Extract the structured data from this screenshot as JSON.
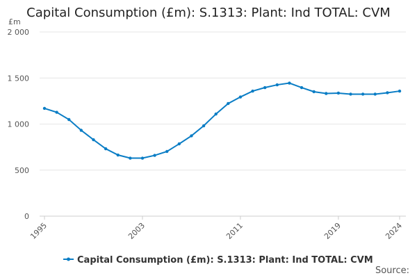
{
  "chart_data": {
    "type": "line",
    "title": "Capital Consumption (£m): S.1313: Plant: Ind TOTAL: CVM",
    "ylabel": "£m",
    "xlabel": "",
    "ylim": [
      0,
      2000
    ],
    "yticks": [
      0,
      500,
      1000,
      1500,
      2000
    ],
    "ytick_labels": [
      "0",
      "500",
      "1 000",
      "1 500",
      "2 000"
    ],
    "xticks": [
      1995,
      2003,
      2011,
      2019,
      2024
    ],
    "grid": true,
    "legend_position": "bottom",
    "series": [
      {
        "name": "Capital Consumption (£m): S.1313: Plant: Ind TOTAL: CVM",
        "color": "#0a7dc5",
        "x": [
          1995,
          1996,
          1997,
          1998,
          1999,
          2000,
          2001,
          2002,
          2003,
          2004,
          2005,
          2006,
          2007,
          2008,
          2009,
          2010,
          2011,
          2012,
          2013,
          2014,
          2015,
          2016,
          2017,
          2018,
          2019,
          2020,
          2021,
          2022,
          2023,
          2024
        ],
        "values": [
          1170,
          1128,
          1049,
          932,
          830,
          732,
          664,
          630,
          630,
          660,
          702,
          785,
          872,
          981,
          1109,
          1223,
          1294,
          1358,
          1396,
          1426,
          1445,
          1396,
          1351,
          1332,
          1336,
          1325,
          1325,
          1325,
          1340,
          1358
        ]
      }
    ]
  },
  "source_label": "Source:"
}
